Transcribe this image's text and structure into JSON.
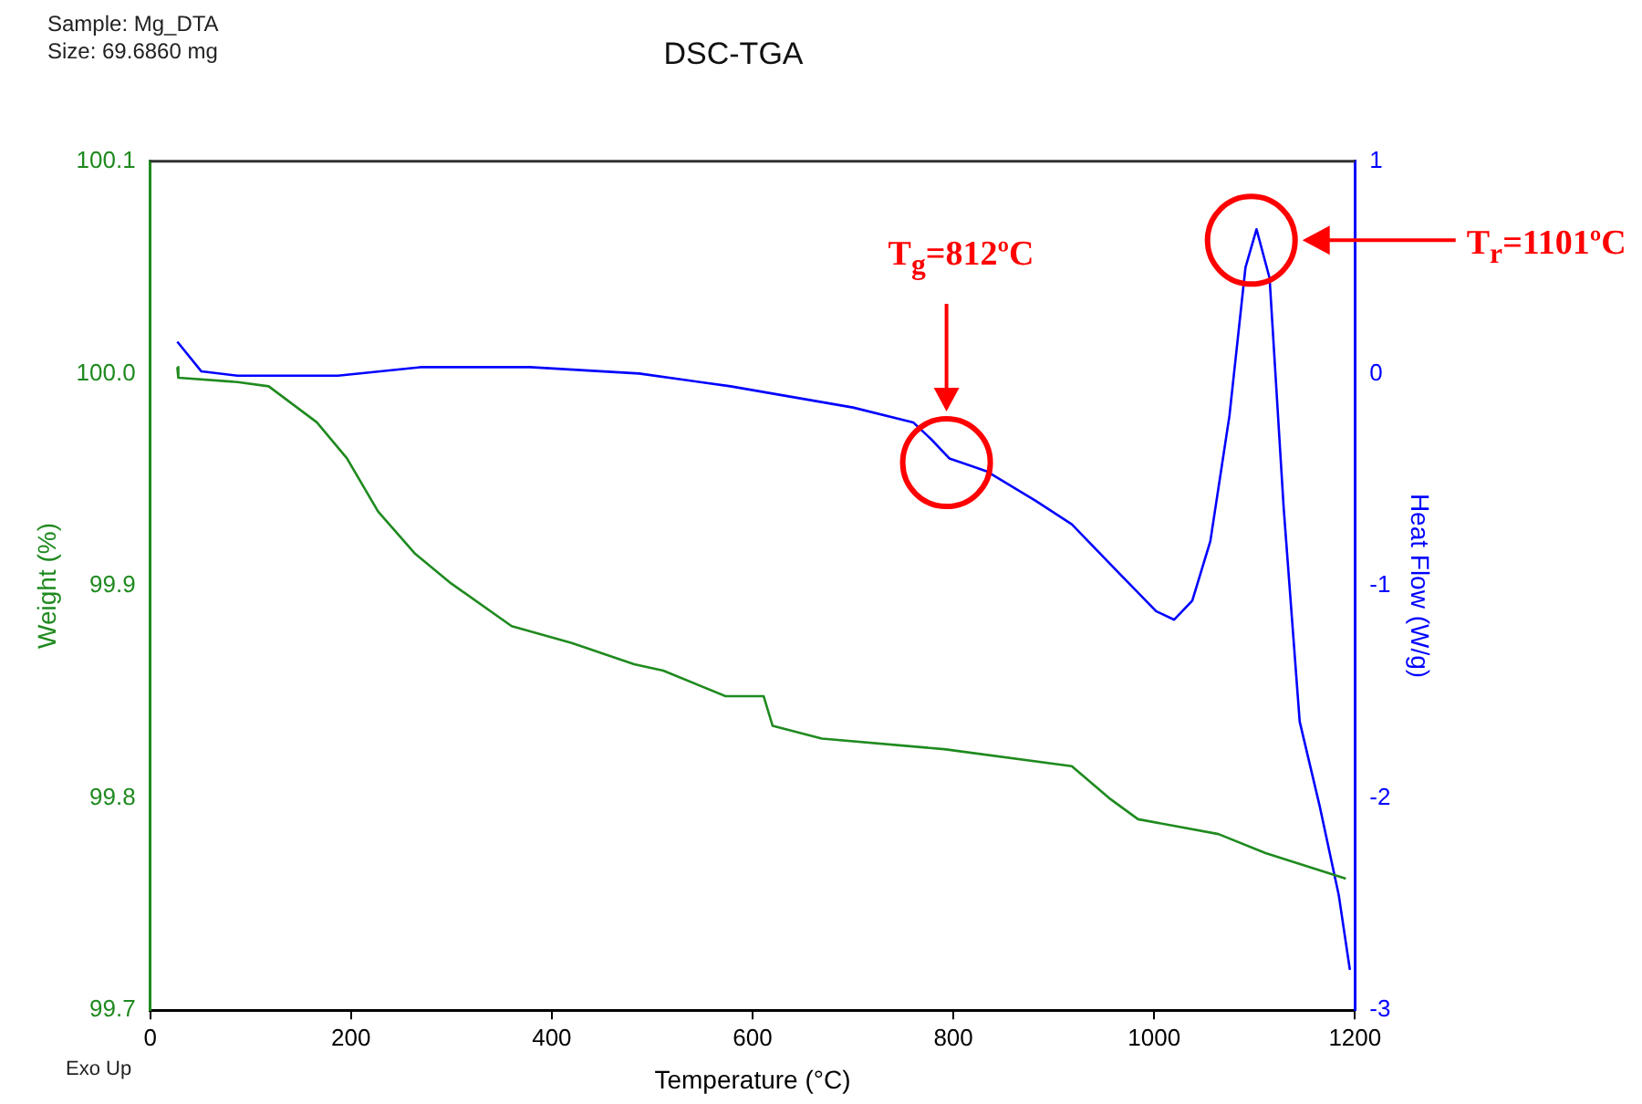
{
  "chart_data": {
    "type": "line",
    "title": "DSC-TGA",
    "xlabel": "Temperature (°C)",
    "ylabel": "Weight (%)",
    "y2label": "Heat Flow (W/g)",
    "annotations": [
      "Sample: Mg_DTA",
      "Size:  69.6860 mg",
      "Exo Up",
      "T$_{g}$=812ºC",
      "T$_{r}$=1101ºC"
    ],
    "xlim": [
      0,
      1200
    ],
    "xticks": [
      0,
      200,
      400,
      600,
      800,
      1000,
      1200
    ],
    "ylim": [
      99.7,
      100.1
    ],
    "yticks": [
      99.7,
      99.8,
      99.9,
      {
        "value": 100.0,
        "label": "100.0"
      },
      100.1
    ],
    "y2lim": [
      -3,
      1
    ],
    "y2ticks": [
      -3,
      -2,
      -1,
      0,
      1
    ],
    "grid": false,
    "legend": false,
    "marker": "none",
    "line_style": "solid",
    "series": [
      {
        "color": "#1f8a1f",
        "x": [
          27,
          28,
          87,
          118,
          166,
          196,
          227,
          264,
          300,
          360,
          420,
          482,
          511,
          573,
          611,
          620,
          669,
          791,
          918,
          955,
          984,
          1064,
          1111,
          1191
        ],
        "values": [
          100.003,
          99.998,
          99.996,
          99.994,
          99.977,
          99.96,
          99.935,
          99.915,
          99.901,
          99.881,
          99.873,
          99.863,
          99.86,
          99.848,
          99.848,
          99.834,
          99.828,
          99.823,
          99.815,
          99.8,
          99.79,
          99.783,
          99.774,
          99.762
        ]
      },
      {
        "color": "#0000ff",
        "axis": "y2",
        "x": [
          27,
          51,
          87,
          187,
          269,
          378,
          487,
          578,
          700,
          760,
          778,
          796,
          833,
          882,
          918,
          965,
          1002,
          1020,
          1038,
          1056,
          1075,
          1091,
          1102,
          1115,
          1129,
          1145,
          1165,
          1184,
          1195
        ],
        "values": [
          0.15,
          0.01,
          -0.01,
          -0.01,
          0.03,
          0.03,
          0.0,
          -0.06,
          -0.16,
          -0.23,
          -0.31,
          -0.4,
          -0.46,
          -0.6,
          -0.71,
          -0.94,
          -1.12,
          -1.16,
          -1.07,
          -0.79,
          -0.2,
          0.5,
          0.68,
          0.45,
          -0.63,
          -1.64,
          -2.04,
          -2.46,
          -2.81
        ]
      }
    ]
  }
}
